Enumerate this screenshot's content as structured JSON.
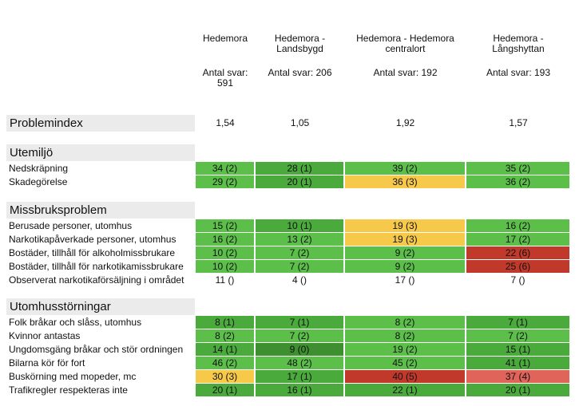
{
  "columns": [
    {
      "name": "Hedemora",
      "count": "Antal svar:\n591"
    },
    {
      "name": "Hedemora -\nLandsbygd",
      "count": "Antal svar: 206"
    },
    {
      "name": "Hedemora - Hedemora\ncentralort",
      "count": "Antal svar: 192"
    },
    {
      "name": "Hedemora -\nLångshyttan",
      "count": "Antal svar: 193"
    }
  ],
  "problemindex": {
    "label": "Problemindex",
    "values": [
      "1,54",
      "1,05",
      "1,92",
      "1,57"
    ]
  },
  "colors": {
    "green": "#5cbf4a",
    "dark_green": "#4aaa3c",
    "darker_green": "#3d8f30",
    "yellow": "#f7c94a",
    "red": "#c0392b",
    "light_red": "#e0645a"
  },
  "sections": [
    {
      "title": "Utemiljö",
      "rows": [
        {
          "label": "Nedskräpning",
          "cells": [
            {
              "v": "34 (2)",
              "c": "green"
            },
            {
              "v": "28 (1)",
              "c": "dark_green"
            },
            {
              "v": "39 (2)",
              "c": "green"
            },
            {
              "v": "35 (2)",
              "c": "green"
            }
          ]
        },
        {
          "label": "Skadegörelse",
          "cells": [
            {
              "v": "29 (2)",
              "c": "green"
            },
            {
              "v": "20 (1)",
              "c": "dark_green"
            },
            {
              "v": "36 (3)",
              "c": "yellow"
            },
            {
              "v": "36 (2)",
              "c": "green"
            }
          ]
        }
      ]
    },
    {
      "title": "Missbruksproblem",
      "rows": [
        {
          "label": "Berusade personer, utomhus",
          "cells": [
            {
              "v": "15 (2)",
              "c": "green"
            },
            {
              "v": "10 (1)",
              "c": "dark_green"
            },
            {
              "v": "19 (3)",
              "c": "yellow"
            },
            {
              "v": "16 (2)",
              "c": "green"
            }
          ]
        },
        {
          "label": "Narkotikapåverkade personer, utomhus",
          "cells": [
            {
              "v": "16 (2)",
              "c": "green"
            },
            {
              "v": "13 (2)",
              "c": "green"
            },
            {
              "v": "19 (3)",
              "c": "yellow"
            },
            {
              "v": "17 (2)",
              "c": "green"
            }
          ]
        },
        {
          "label": "Bostäder, tillhåll för alkoholmissbrukare",
          "cells": [
            {
              "v": "10 (2)",
              "c": "green"
            },
            {
              "v": "7 (2)",
              "c": "green"
            },
            {
              "v": "9 (2)",
              "c": "green"
            },
            {
              "v": "22 (6)",
              "c": "red"
            }
          ]
        },
        {
          "label": "Bostäder, tillhåll för narkotikamissbrukare",
          "cells": [
            {
              "v": "10 (2)",
              "c": "green"
            },
            {
              "v": "7 (2)",
              "c": "green"
            },
            {
              "v": "9 (2)",
              "c": "green"
            },
            {
              "v": "25 (6)",
              "c": "red"
            }
          ]
        },
        {
          "label": "Observerat narkotikaförsäljning i området",
          "cells": [
            {
              "v": "11 ()",
              "c": "none"
            },
            {
              "v": "4 ()",
              "c": "none"
            },
            {
              "v": "17 ()",
              "c": "none"
            },
            {
              "v": "7 ()",
              "c": "none"
            }
          ]
        }
      ]
    },
    {
      "title": "Utomhusstörningar",
      "rows": [
        {
          "label": "Folk bråkar och slåss, utomhus",
          "cells": [
            {
              "v": "8 (1)",
              "c": "dark_green"
            },
            {
              "v": "7 (1)",
              "c": "dark_green"
            },
            {
              "v": "8 (2)",
              "c": "green"
            },
            {
              "v": "7 (1)",
              "c": "dark_green"
            }
          ]
        },
        {
          "label": "Kvinnor antastas",
          "cells": [
            {
              "v": "8 (2)",
              "c": "green"
            },
            {
              "v": "7 (2)",
              "c": "green"
            },
            {
              "v": "8 (2)",
              "c": "green"
            },
            {
              "v": "7 (2)",
              "c": "green"
            }
          ]
        },
        {
          "label": "Ungdomsgäng bråkar och stör ordningen",
          "cells": [
            {
              "v": "14 (1)",
              "c": "dark_green"
            },
            {
              "v": "9 (0)",
              "c": "darker_green"
            },
            {
              "v": "19 (2)",
              "c": "green"
            },
            {
              "v": "15 (1)",
              "c": "dark_green"
            }
          ]
        },
        {
          "label": "Bilarna kör för fort",
          "cells": [
            {
              "v": "46 (2)",
              "c": "green"
            },
            {
              "v": "48 (2)",
              "c": "green"
            },
            {
              "v": "45 (2)",
              "c": "green"
            },
            {
              "v": "41 (1)",
              "c": "dark_green"
            }
          ]
        },
        {
          "label": "Buskörning med mopeder, mc",
          "cells": [
            {
              "v": "30 (3)",
              "c": "yellow"
            },
            {
              "v": "17 (1)",
              "c": "dark_green"
            },
            {
              "v": "40 (5)",
              "c": "red"
            },
            {
              "v": "37 (4)",
              "c": "light_red"
            }
          ]
        },
        {
          "label": "Trafikregler respekteras inte",
          "cells": [
            {
              "v": "20 (1)",
              "c": "dark_green"
            },
            {
              "v": "16 (1)",
              "c": "dark_green"
            },
            {
              "v": "22 (1)",
              "c": "dark_green"
            },
            {
              "v": "20 (1)",
              "c": "dark_green"
            }
          ]
        }
      ]
    }
  ]
}
